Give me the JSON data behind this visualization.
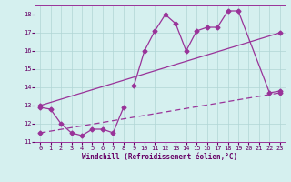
{
  "xlabel": "Windchill (Refroidissement éolien,°C)",
  "bg_color": "#d5f0ef",
  "grid_color": "#b0d5d5",
  "line_color": "#993399",
  "xlim": [
    -0.5,
    23.5
  ],
  "ylim": [
    11,
    18.5
  ],
  "yticks": [
    11,
    12,
    13,
    14,
    15,
    16,
    17,
    18
  ],
  "xticks": [
    0,
    1,
    2,
    3,
    4,
    5,
    6,
    7,
    8,
    9,
    10,
    11,
    12,
    13,
    14,
    15,
    16,
    17,
    18,
    19,
    20,
    21,
    22,
    23
  ],
  "series": [
    {
      "x": [
        0,
        1,
        2,
        3,
        4,
        5,
        6,
        7,
        8
      ],
      "y": [
        12.9,
        12.8,
        12.0,
        11.5,
        11.35,
        11.7,
        11.7,
        11.5,
        12.9
      ],
      "linestyle": "-",
      "marker": "D",
      "markersize": 2.5,
      "linewidth": 0.9
    },
    {
      "x": [
        9,
        10,
        11,
        12,
        13,
        14,
        15,
        16,
        17,
        18,
        19,
        22,
        23
      ],
      "y": [
        14.1,
        16.0,
        17.1,
        18.0,
        17.5,
        16.0,
        17.1,
        17.3,
        17.3,
        18.2,
        18.2,
        13.7,
        13.8
      ],
      "linestyle": "-",
      "marker": "D",
      "markersize": 2.5,
      "linewidth": 0.9
    },
    {
      "x": [
        0,
        23
      ],
      "y": [
        13.0,
        17.0
      ],
      "linestyle": "-",
      "marker": "D",
      "markersize": 2.5,
      "linewidth": 0.9
    },
    {
      "x": [
        0,
        23
      ],
      "y": [
        11.5,
        13.7
      ],
      "linestyle": "--",
      "marker": "D",
      "markersize": 2.5,
      "linewidth": 0.9
    }
  ]
}
